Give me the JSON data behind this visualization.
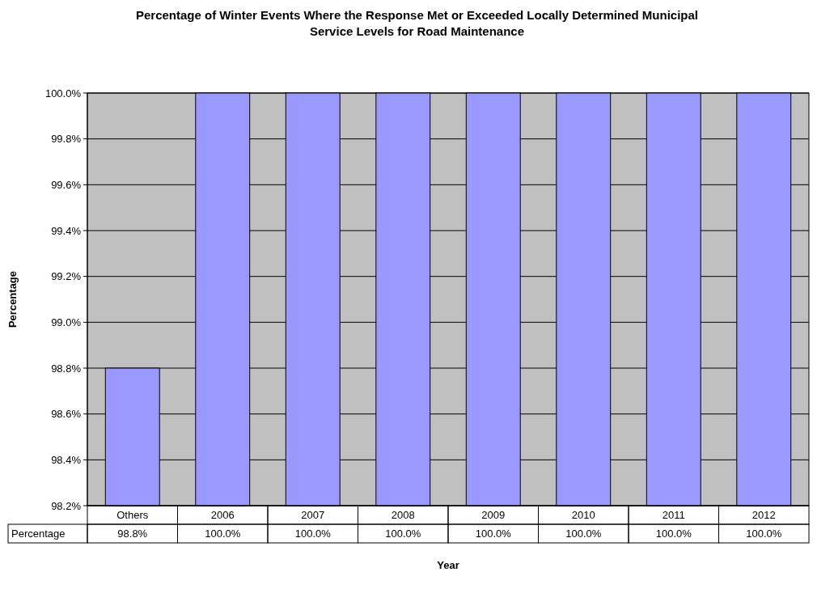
{
  "chart_data": {
    "type": "bar",
    "title": "Percentage of Winter Events Where the Response Met or Exceeded Locally Determined Municipal Service Levels for Road Maintenance",
    "xlabel": "Year",
    "ylabel": "Percentage",
    "categories": [
      "Others",
      "2006",
      "2007",
      "2008",
      "2009",
      "2010",
      "2011",
      "2012"
    ],
    "series": [
      {
        "name": "Percentage",
        "color": "#9999ff",
        "values": [
          98.8,
          100.0,
          100.0,
          100.0,
          100.0,
          100.0,
          100.0,
          100.0
        ],
        "value_labels": [
          "98.8%",
          "100.0%",
          "100.0%",
          "100.0%",
          "100.0%",
          "100.0%",
          "100.0%",
          "100.0%"
        ]
      }
    ],
    "ylim": [
      98.2,
      100.0
    ],
    "yticks": [
      {
        "value": 98.2,
        "label": "98.2%"
      },
      {
        "value": 98.4,
        "label": "98.4%"
      },
      {
        "value": 98.6,
        "label": "98.6%"
      },
      {
        "value": 98.8,
        "label": "98.8%"
      },
      {
        "value": 99.0,
        "label": "99.0%"
      },
      {
        "value": 99.2,
        "label": "99.2%"
      },
      {
        "value": 99.4,
        "label": "99.4%"
      },
      {
        "value": 99.6,
        "label": "99.6%"
      },
      {
        "value": 99.8,
        "label": "99.8%"
      },
      {
        "value": 100.0,
        "label": "100.0%"
      }
    ],
    "grid": "y"
  }
}
